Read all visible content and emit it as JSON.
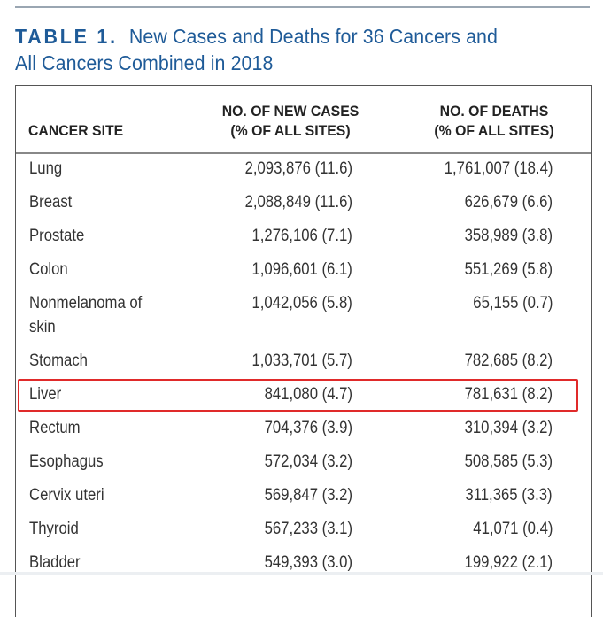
{
  "title": {
    "label": "TABLE 1.",
    "text_line1": "New Cases and Deaths for 36 Cancers and",
    "text_line2": "All Cancers Combined in 2018"
  },
  "columns": {
    "site": "CANCER SITE",
    "cases_1": "NO. OF NEW CASES",
    "cases_2": "(% OF ALL SITES)",
    "deaths_1": "NO. OF DEATHS",
    "deaths_2": "(% OF ALL SITES)"
  },
  "rows": [
    {
      "site": "Lung",
      "cases": "2,093,876 (11.6)",
      "deaths": "1,761,007 (18.4)"
    },
    {
      "site": "Breast",
      "cases": "2,088,849 (11.6)",
      "deaths": "626,679 (6.6)"
    },
    {
      "site": "Prostate",
      "cases": "1,276,106 (7.1)",
      "deaths": "358,989 (3.8)"
    },
    {
      "site": "Colon",
      "cases": "1,096,601 (6.1)",
      "deaths": "551,269 (5.8)"
    },
    {
      "site": "Nonmelanoma of",
      "site2": "skin",
      "cases": "1,042,056 (5.8)",
      "deaths": "65,155 (0.7)"
    },
    {
      "site": "Stomach",
      "cases": "1,033,701 (5.7)",
      "deaths": "782,685 (8.2)"
    },
    {
      "site": "Liver",
      "cases": "841,080 (4.7)",
      "deaths": "781,631 (8.2)",
      "highlighted": true
    },
    {
      "site": "Rectum",
      "cases": "704,376 (3.9)",
      "deaths": "310,394 (3.2)"
    },
    {
      "site": "Esophagus",
      "cases": "572,034 (3.2)",
      "deaths": "508,585 (5.3)"
    },
    {
      "site": "Cervix uteri",
      "cases": "569,847 (3.2)",
      "deaths": "311,365 (3.3)"
    },
    {
      "site": "Thyroid",
      "cases": "567,233 (3.1)",
      "deaths": "41,071 (0.4)"
    },
    {
      "site": "Bladder",
      "cases": "549,393 (3.0)",
      "deaths": "199,922 (2.1)"
    }
  ],
  "colors": {
    "title": "#1f5b98",
    "highlight": "#e02a2a"
  }
}
